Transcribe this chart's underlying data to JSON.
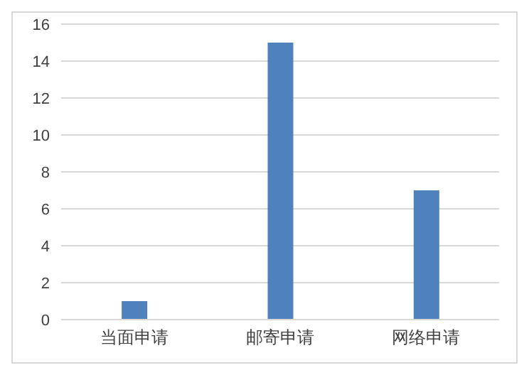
{
  "chart_data": {
    "type": "bar",
    "categories": [
      "当面申请",
      "邮寄申请",
      "网络申请"
    ],
    "values": [
      1,
      15,
      7
    ],
    "color": "#4f81bd",
    "ylim": [
      0,
      16
    ],
    "yticks": [
      0,
      2,
      4,
      6,
      8,
      10,
      12,
      14,
      16
    ],
    "grid": "y"
  }
}
